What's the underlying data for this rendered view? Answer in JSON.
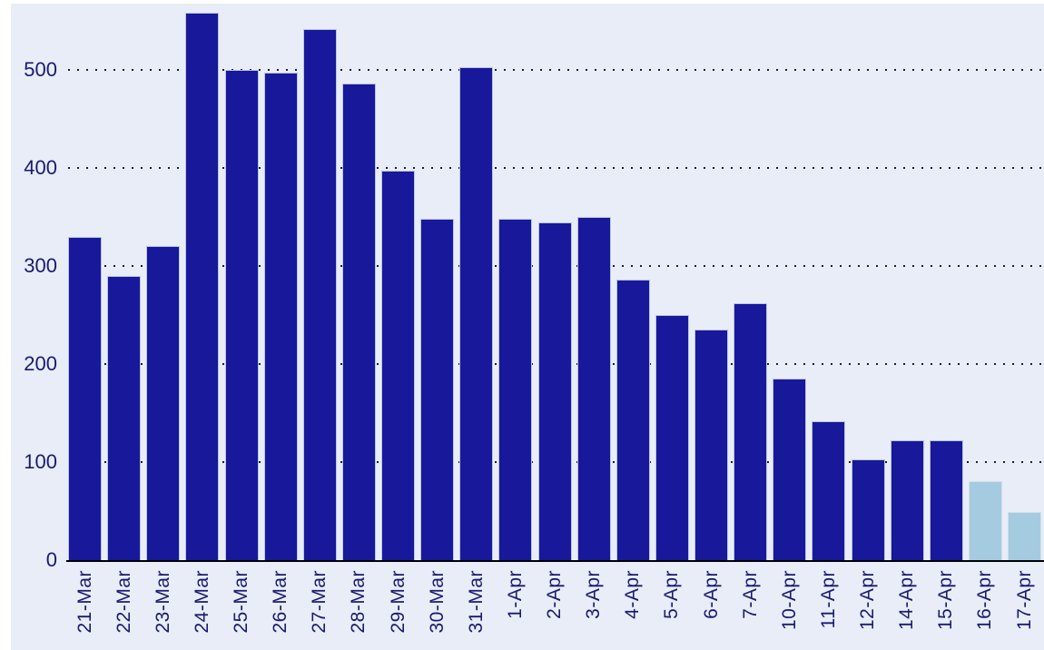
{
  "chart_data": {
    "type": "bar",
    "title": "",
    "xlabel": "",
    "ylabel": "",
    "categories": [
      "21-Mar",
      "22-Mar",
      "23-Mar",
      "24-Mar",
      "25-Mar",
      "26-Mar",
      "27-Mar",
      "28-Mar",
      "29-Mar",
      "30-Mar",
      "31-Mar",
      "1-Apr",
      "2-Apr",
      "3-Apr",
      "4-Apr",
      "5-Apr",
      "6-Apr",
      "7-Apr",
      "10-Apr",
      "11-Apr",
      "12-Apr",
      "14-Apr",
      "15-Apr",
      "16-Apr",
      "17-Apr"
    ],
    "values": [
      330,
      290,
      320,
      558,
      500,
      497,
      542,
      486,
      397,
      348,
      503,
      348,
      344,
      350,
      286,
      250,
      235,
      262,
      185,
      142,
      103,
      122,
      122,
      81,
      49
    ],
    "highlight_categories": [
      "16-Apr",
      "17-Apr"
    ],
    "ylim": [
      0,
      568
    ],
    "yticks": [
      0,
      100,
      200,
      300,
      400,
      500
    ],
    "grid": "horizontal-dotted",
    "legend": "none",
    "colors": {
      "bar": "#18189a",
      "bar_border": "#b9c5e8",
      "highlight_bar": "#a5cbe0",
      "highlight_bar_border": "#cfe0ee",
      "plot_background": "#e8edf7",
      "gridline_dots": "#1b1b30",
      "axis_line": "#000000",
      "tick_label": "#1a1a6e"
    }
  }
}
